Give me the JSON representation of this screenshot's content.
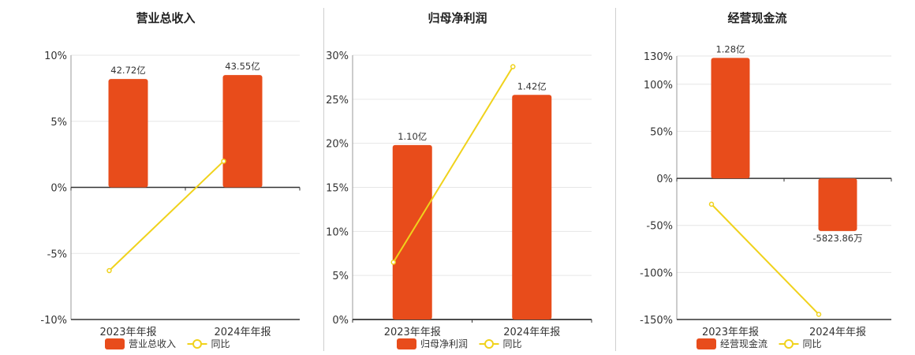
{
  "colors": {
    "bar": "#e84c1b",
    "line": "#f0d21c",
    "axis": "#333333",
    "grid": "#e6e6e6"
  },
  "chart_data": [
    {
      "type": "bar",
      "title": "营业总收入",
      "categories": [
        "2023年年报",
        "2024年年报"
      ],
      "bar_series": {
        "name": "营业总收入",
        "labels": [
          "42.72亿",
          "43.55亿"
        ],
        "values_scaled_pct": [
          8.2,
          8.5
        ]
      },
      "line_series": {
        "name": "同比",
        "values": [
          -6.3,
          1.98
        ]
      },
      "ylim": [
        -10,
        10
      ],
      "yticks": [
        10,
        5,
        0,
        -5,
        -10
      ],
      "ytick_labels": [
        "10%",
        "5%",
        "0%",
        "-5%",
        "-10%"
      ]
    },
    {
      "type": "bar",
      "title": "归母净利润",
      "categories": [
        "2023年年报",
        "2024年年报"
      ],
      "bar_series": {
        "name": "归母净利润",
        "labels": [
          "1.10亿",
          "1.42亿"
        ],
        "values_scaled_pct": [
          19.8,
          25.5
        ]
      },
      "line_series": {
        "name": "同比",
        "values": [
          6.5,
          28.7
        ]
      },
      "ylim": [
        0,
        30
      ],
      "yticks": [
        30,
        25,
        20,
        15,
        10,
        5,
        0
      ],
      "ytick_labels": [
        "30%",
        "25%",
        "20%",
        "15%",
        "10%",
        "5%",
        "0%"
      ]
    },
    {
      "type": "bar",
      "title": "经营现金流",
      "categories": [
        "2023年年报",
        "2024年年报"
      ],
      "bar_series": {
        "name": "经营现金流",
        "labels": [
          "1.28亿",
          "-5823.86万"
        ],
        "values_scaled_pct": [
          128,
          -56
        ]
      },
      "line_series": {
        "name": "同比",
        "values": [
          -27.5,
          -144.5
        ]
      },
      "ylim": [
        -150,
        130
      ],
      "yticks": [
        130,
        100,
        50,
        0,
        -50,
        -100,
        -150
      ],
      "ytick_labels": [
        "130%",
        "100%",
        "50%",
        "0%",
        "-50%",
        "-100%",
        "-150%"
      ]
    }
  ]
}
